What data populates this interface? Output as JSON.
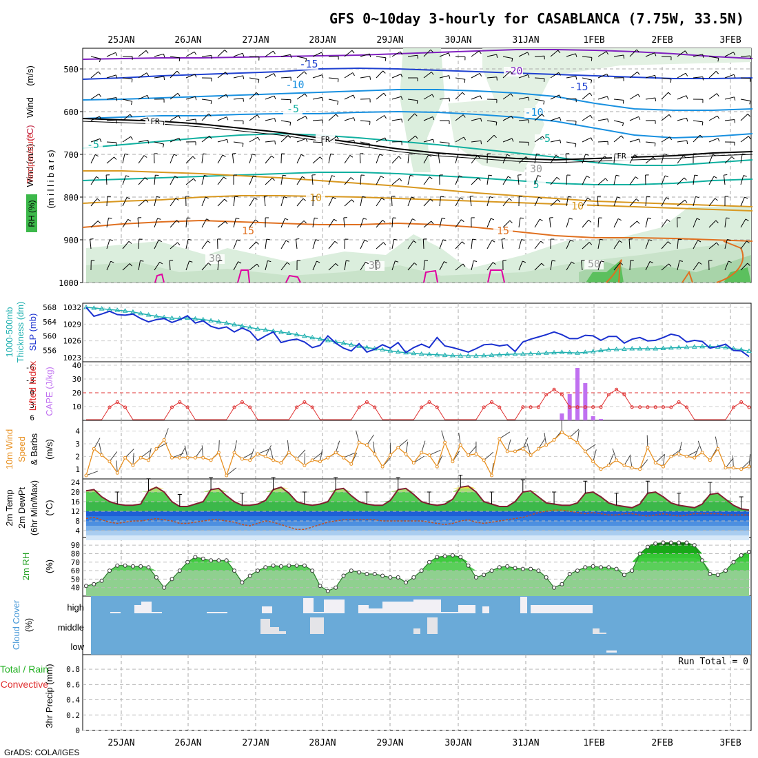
{
  "title": "GFS 0~10day 3-hourly for CASABLANCA (7.75W, 33.5N)",
  "credit": "GrADS: COLA/IGES",
  "dates": [
    "25JAN",
    "26JAN",
    "27JAN",
    "28JAN",
    "29JAN",
    "30JAN",
    "31JAN",
    "1FEB",
    "2FEB",
    "3FEB"
  ],
  "colors": {
    "wind_15": "#1e40d0",
    "wind_20": "#8020c0",
    "t_cold": "#1890e0",
    "t_cool": "#10b0a0",
    "t_warm": "#d89820",
    "t_hot": "#e07020",
    "slp": "#1a30d0",
    "thk": "#20b0b0",
    "li": "#e03030",
    "cape": "#c070f0",
    "wind10": "#e89020"
  },
  "panels": {
    "upper": {
      "ylabels": [
        "Wind (m/s)",
        "Temperature (°C)",
        "RH (%)",
        "(millibars)"
      ],
      "ylabel_parts": {
        "wind": "Wind",
        "wind_units": "(m/s)",
        "temperature": "Temperature",
        "temperature_units": "(°C)",
        "rh": "RH (%)",
        "pressure": "(m i l l i b a r s)"
      },
      "yticks": [
        "500",
        "600",
        "700",
        "800",
        "900",
        "1000"
      ],
      "contour_labels": [
        "-20",
        "-15",
        "-15",
        "-10",
        "-10",
        "-5",
        "-5",
        "-5",
        "5",
        "10",
        "10",
        "15",
        "15",
        "FR",
        "FR",
        "FR",
        "30",
        "30",
        "30",
        "50"
      ]
    },
    "slp": {
      "ylabels": [
        "1000-500mb",
        "Thickness (dm)",
        "SLP (mb)"
      ],
      "left_ticks": [
        "568",
        "564",
        "560",
        "556"
      ],
      "right_ticks": [
        "1032",
        "1029",
        "1026",
        "1023"
      ]
    },
    "cape": {
      "ylabels": [
        "Lifted Index",
        "CAPE (J/kg)"
      ],
      "left_ticks": [
        "-6",
        "-3",
        "0",
        "3",
        "6"
      ],
      "right_ticks": [
        "40",
        "30",
        "20",
        "10"
      ]
    },
    "wind10": {
      "ylabels": [
        "10m Wind",
        "Speed",
        "& Barbs",
        "(m/s)"
      ],
      "ticks": [
        "4",
        "3",
        "2",
        "1"
      ]
    },
    "temp": {
      "ylabels": [
        "2m Temp",
        "2m DewPt",
        "(6hr Min/Max)",
        "(°C)"
      ],
      "ticks": [
        "24",
        "20",
        "16",
        "12",
        "8",
        "4"
      ]
    },
    "rh": {
      "ylabels": [
        "2m RH",
        "(%)"
      ],
      "ticks": [
        "90",
        "80",
        "70",
        "60",
        "50",
        "40"
      ]
    },
    "cloud": {
      "ylabels": [
        "Cloud Cover",
        "(%)"
      ],
      "levels": [
        "high",
        "middle",
        "low"
      ]
    },
    "precip": {
      "ylabels": [
        "Total / Rain",
        "Convective",
        "3hr Precip (mm)"
      ],
      "ticks": [
        "0.8",
        "0.6",
        "0.4",
        "0.2",
        "0"
      ],
      "run_total": "Run Total = 0"
    }
  },
  "chart_data": [
    {
      "type": "line",
      "title": "SLP (mb)",
      "x": "3-hourly 24JAN-3FEB",
      "series": [
        {
          "name": "SLP (mb)",
          "values": [
            1032.0,
            1030.4,
            1030.8,
            1031.3,
            1030.7,
            1030.6,
            1030.8,
            1030.0,
            1029.4,
            1029.8,
            1030.0,
            1029.3,
            1029.8,
            1030.5,
            1029.2,
            1029.6,
            1028.6,
            1028.2,
            1028.5,
            1027.6,
            1028.3,
            1027.7,
            1026.1,
            1026.9,
            1027.6,
            1025.7,
            1026.1,
            1026.3,
            1025.8,
            1024.8,
            1025.2,
            1026.9,
            1025.6,
            1024.7,
            1024.2,
            1025.5,
            1024.0,
            1024.5,
            1025.3,
            1024.7,
            1025.7,
            1023.9,
            1024.8,
            1025.4,
            1024.8,
            1026.6,
            1025.1,
            1024.8,
            1024.4,
            1024.0,
            1024.6,
            1025.3,
            1025.4,
            1025.1,
            1025.3,
            1024.1,
            1025.8,
            1026.3,
            1026.7,
            1027.1,
            1027.6,
            1027.1,
            1026.4,
            1026.4,
            1027.0,
            1026.9,
            1026.1,
            1026.8,
            1026.8,
            1025.6,
            1026.3,
            1026.6,
            1026.0,
            1026.1,
            1026.6,
            1027.2,
            1026.9,
            1025.8,
            1026.1,
            1025.9,
            1024.7,
            1025.0,
            1025.4,
            1024.3,
            1024.2,
            1023.2
          ]
        },
        {
          "name": "1000-500mb Thickness (dm)",
          "values": [
            568.0,
            567.8,
            567.6,
            567.4,
            567.2,
            567.0,
            566.7,
            566.3,
            565.9,
            565.5,
            565.2,
            565.0,
            564.9,
            565.0,
            564.8,
            564.6,
            564.3,
            564.0,
            563.6,
            563.2,
            562.8,
            562.4,
            562.0,
            561.7,
            561.4,
            561.1,
            560.8,
            560.4,
            560.0,
            559.6,
            559.2,
            558.8,
            558.4,
            558.0,
            557.6,
            557.2,
            556.8,
            556.5,
            556.2,
            555.9,
            555.6,
            555.4,
            555.2,
            555.0,
            554.9,
            554.8,
            554.7,
            554.6,
            554.5,
            554.5,
            554.5,
            554.6,
            554.7,
            554.8,
            554.9,
            555.0,
            555.0,
            555.1,
            555.2,
            555.3,
            555.4,
            555.5,
            555.4,
            555.3,
            555.5,
            555.7,
            556.0,
            556.2,
            556.3,
            556.4,
            556.5,
            556.5,
            556.5,
            556.5,
            556.6,
            556.7,
            556.8,
            556.9,
            557.0,
            557.1,
            557.1,
            557.0,
            556.8,
            556.5,
            556.2,
            555.8
          ]
        }
      ]
    },
    {
      "type": "bar",
      "title": "CAPE (J/kg)",
      "series": [
        {
          "name": "CAPE (J/kg)",
          "values": [
            0,
            0,
            0,
            0,
            0,
            0,
            0,
            0,
            0,
            0,
            0,
            0,
            0,
            0,
            0,
            0,
            0,
            0,
            0,
            0,
            0,
            0,
            0,
            0,
            0,
            0,
            0,
            0,
            0,
            0,
            0,
            0,
            0,
            0,
            0,
            0,
            0,
            0,
            0,
            0,
            0,
            0,
            0,
            0,
            0,
            0,
            0,
            0,
            0,
            0,
            0,
            0,
            0,
            0,
            0,
            0,
            0,
            0,
            0,
            0,
            0,
            5,
            19,
            38,
            27,
            3,
            1,
            0,
            0,
            0,
            0,
            0,
            0,
            0,
            0,
            0,
            0,
            0,
            0,
            0,
            0,
            0,
            0,
            0,
            0,
            0
          ]
        },
        {
          "name": "Lifted Index",
          "values": []
        }
      ]
    },
    {
      "type": "line",
      "title": "10m Wind Speed (m/s)",
      "series": [
        {
          "name": "10m Wind Speed",
          "values": [
            0.5,
            2.6,
            2.1,
            1.6,
            0.7,
            1.9,
            1.3,
            1.9,
            1.7,
            2.6,
            3.3,
            1.9,
            1.9,
            1.9,
            1.9,
            1.9,
            1.7,
            2.3,
            0.5,
            2.3,
            1.8,
            1.7,
            2.2,
            2.0,
            1.7,
            1.5,
            2.3,
            1.8,
            1.3,
            1.7,
            1.6,
            1.9,
            2.3,
            1.9,
            1.4,
            3.1,
            2.9,
            2.2,
            1.2,
            2.1,
            2.7,
            2.2,
            1.5,
            2.3,
            2.1,
            1.2,
            3.1,
            1.6,
            2.9,
            2.1,
            2.2,
            1.7,
            0.5,
            3.4,
            2.4,
            2.4,
            2.6,
            2.1,
            2.6,
            2.9,
            3.3,
            3.9,
            3.5,
            3.1,
            2.4,
            1.6,
            1.0,
            1.3,
            1.7,
            1.3,
            1.1,
            1.0,
            2.7,
            1.5,
            1.2,
            2.0,
            2.2,
            2.0,
            1.9,
            2.3,
            1.7,
            2.6,
            1.1,
            1.1,
            1.0,
            1.2
          ]
        }
      ]
    },
    {
      "type": "area",
      "title": "2m Temp / DewPt (°C)",
      "series": [
        {
          "name": "2m Temp",
          "values": [
            20.5,
            21.0,
            18.0,
            16.0,
            15.0,
            14.5,
            14.5,
            15.0,
            20.5,
            22.0,
            20.0,
            16.0,
            14.0,
            14.0,
            15.0,
            16.0,
            21.0,
            21.5,
            18.5,
            16.0,
            14.5,
            14.5,
            15.0,
            16.5,
            21.0,
            22.0,
            19.5,
            16.0,
            15.0,
            14.5,
            15.0,
            16.0,
            21.0,
            21.5,
            18.5,
            16.0,
            15.0,
            14.5,
            14.5,
            16.5,
            21.0,
            21.5,
            19.0,
            16.0,
            15.0,
            14.5,
            15.0,
            17.0,
            22.0,
            22.5,
            20.0,
            16.0,
            15.0,
            14.0,
            14.0,
            16.0,
            20.0,
            20.5,
            18.0,
            15.5,
            15.0,
            14.5,
            14.5,
            15.5,
            19.5,
            20.0,
            18.0,
            15.5,
            14.5,
            14.0,
            13.5,
            15.0,
            19.5,
            20.0,
            18.0,
            15.5,
            14.5,
            14.0,
            13.5,
            15.0,
            19.0,
            19.5,
            17.0,
            14.5,
            13.0,
            12.5
          ]
        },
        {
          "name": "2m DewPt",
          "values": [
            9.0,
            9.5,
            8.5,
            7.5,
            7.0,
            7.5,
            8.0,
            8.0,
            8.5,
            9.0,
            8.5,
            8.0,
            7.0,
            7.0,
            7.5,
            8.0,
            8.5,
            8.5,
            8.0,
            7.5,
            6.5,
            6.0,
            7.0,
            8.0,
            7.5,
            6.5,
            5.5,
            4.5,
            4.5,
            5.5,
            6.5,
            7.5,
            8.0,
            8.5,
            8.5,
            8.5,
            8.5,
            8.5,
            8.0,
            8.0,
            8.0,
            8.0,
            8.0,
            8.0,
            7.5,
            7.0,
            6.5,
            7.0,
            8.0,
            8.5,
            7.5,
            7.0,
            7.5,
            8.0,
            8.5,
            9.0,
            9.5,
            10.5,
            11.5,
            12.0,
            12.5,
            12.5,
            12.0,
            11.5,
            11.0,
            11.5,
            11.0,
            10.5,
            10.5,
            11.0,
            11.0,
            10.5,
            10.0,
            10.5,
            11.0,
            10.5,
            10.0,
            10.5,
            11.0,
            11.0,
            11.0,
            11.0,
            10.5,
            10.5,
            10.5,
            10.5
          ]
        }
      ]
    },
    {
      "type": "area",
      "title": "2m RH (%)",
      "series": [
        {
          "name": "2m RH",
          "values": [
            42,
            44,
            48,
            60,
            66,
            66,
            65,
            65,
            64,
            52,
            40,
            50,
            60,
            70,
            76,
            74,
            72,
            72,
            72,
            60,
            46,
            54,
            60,
            64,
            66,
            65,
            66,
            66,
            66,
            60,
            42,
            36,
            40,
            54,
            60,
            58,
            56,
            56,
            54,
            52,
            52,
            46,
            52,
            60,
            70,
            76,
            77,
            78,
            76,
            66,
            52,
            55,
            60,
            64,
            65,
            63,
            62,
            62,
            60,
            52,
            40,
            44,
            56,
            60,
            64,
            65,
            64,
            64,
            62,
            55,
            60,
            80,
            88,
            92,
            93,
            93,
            93,
            93,
            90,
            72,
            56,
            55,
            60,
            70,
            78,
            82
          ]
        }
      ]
    }
  ]
}
